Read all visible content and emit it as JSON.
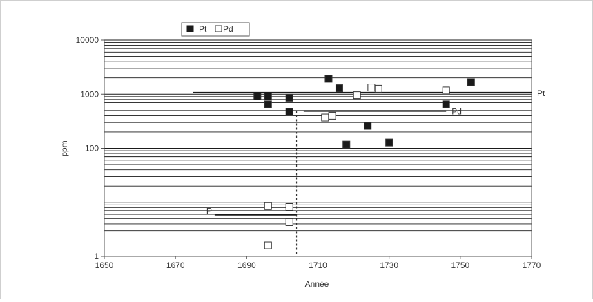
{
  "chart_data": {
    "type": "scatter",
    "xlabel": "Année",
    "ylabel": "ppm",
    "xlim": [
      1650,
      1770
    ],
    "ylim": [
      1,
      10000
    ],
    "yscale": "log",
    "x_ticks": [
      "1650",
      "1670",
      "1690",
      "1710",
      "1730",
      "1750",
      "1770"
    ],
    "y_ticks": [
      "1",
      "100",
      "1000",
      "10000"
    ],
    "grid": "horizontal lines",
    "legend_position": "top-left",
    "colors": {
      "Pt": "#1a1a1a",
      "Pd": "#ffffff",
      "line": "#1a1a1a",
      "grid": "#1a1a1a"
    },
    "series": [
      {
        "name": "Pt",
        "marker": "filled-square",
        "points": [
          {
            "x": 1693,
            "y": 910
          },
          {
            "x": 1696,
            "y": 910
          },
          {
            "x": 1696,
            "y": 650
          },
          {
            "x": 1702,
            "y": 860
          },
          {
            "x": 1702,
            "y": 470
          },
          {
            "x": 1713,
            "y": 1930
          },
          {
            "x": 1716,
            "y": 1290
          },
          {
            "x": 1718,
            "y": 117
          },
          {
            "x": 1724,
            "y": 260
          },
          {
            "x": 1730,
            "y": 128
          },
          {
            "x": 1746,
            "y": 650
          },
          {
            "x": 1753,
            "y": 1660
          }
        ]
      },
      {
        "name": "Pd",
        "marker": "open-square",
        "points": [
          {
            "x": 1696,
            "y": 8.5
          },
          {
            "x": 1696,
            "y": 1.6
          },
          {
            "x": 1702,
            "y": 8.2
          },
          {
            "x": 1702,
            "y": 4.3
          },
          {
            "x": 1712,
            "y": 370
          },
          {
            "x": 1714,
            "y": 400
          },
          {
            "x": 1721,
            "y": 960
          },
          {
            "x": 1725,
            "y": 1330
          },
          {
            "x": 1727,
            "y": 1260
          },
          {
            "x": 1746,
            "y": 1170
          }
        ]
      }
    ],
    "reference_lines": [
      {
        "label": "Pt",
        "x_start": 1675,
        "x_end": 1770,
        "y": 1070
      },
      {
        "label": "Pd",
        "x_start": 1706,
        "x_end": 1746,
        "y": 490
      },
      {
        "label": "P",
        "x_start": 1681,
        "x_end": 1704,
        "y": 5.9
      }
    ],
    "dashed_line": {
      "x": 1704,
      "y_start": 1,
      "y_end": 490
    },
    "legend": [
      "Pt",
      "Pd"
    ]
  }
}
